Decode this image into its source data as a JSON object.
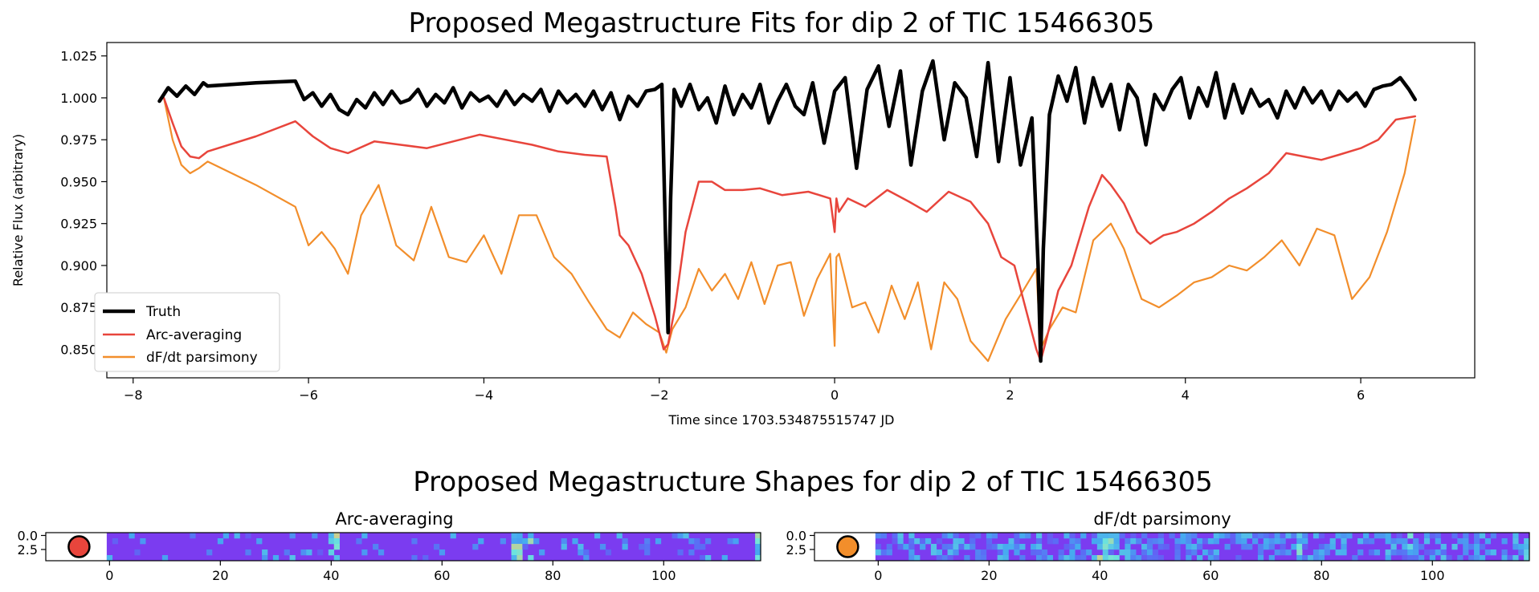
{
  "chart_data": [
    {
      "type": "line",
      "title": "Proposed Megastructure Fits for dip 2 of TIC 15466305",
      "xlabel": "Time since 1703.534875515747 JD",
      "ylabel": "Relative Flux (arbitrary)",
      "xlim": [
        -8.3,
        7.3
      ],
      "ylim": [
        0.833,
        1.033
      ],
      "xticks": [
        -8,
        -6,
        -4,
        -2,
        0,
        2,
        4,
        6
      ],
      "xtick_labels": [
        "−8",
        "−6",
        "−4",
        "−2",
        "0",
        "2",
        "4",
        "6"
      ],
      "yticks": [
        0.85,
        0.875,
        0.9,
        0.925,
        0.95,
        0.975,
        1.0,
        1.025
      ],
      "ytick_labels": [
        "0.850",
        "0.875",
        "0.900",
        "0.925",
        "0.950",
        "0.975",
        "1.000",
        "1.025"
      ],
      "grid": false,
      "legend_position": "lower-left",
      "series": [
        {
          "name": "Truth",
          "color": "#000000",
          "x": [
            -7.7,
            -7.6,
            -7.5,
            -7.4,
            -7.3,
            -7.2,
            -7.15,
            -6.6,
            -6.15,
            -6.05,
            -5.95,
            -5.85,
            -5.75,
            -5.65,
            -5.55,
            -5.45,
            -5.35,
            -5.25,
            -5.15,
            -5.05,
            -4.95,
            -4.85,
            -4.75,
            -4.65,
            -4.55,
            -4.45,
            -4.35,
            -4.25,
            -4.15,
            -4.05,
            -3.95,
            -3.85,
            -3.75,
            -3.65,
            -3.55,
            -3.45,
            -3.35,
            -3.25,
            -3.15,
            -3.05,
            -2.95,
            -2.85,
            -2.75,
            -2.65,
            -2.55,
            -2.45,
            -2.35,
            -2.25,
            -2.15,
            -2.05,
            -1.97,
            -1.93,
            -1.9,
            -1.87,
            -1.83,
            -1.75,
            -1.65,
            -1.55,
            -1.45,
            -1.35,
            -1.25,
            -1.15,
            -1.05,
            -0.95,
            -0.85,
            -0.75,
            -0.65,
            -0.55,
            -0.45,
            -0.35,
            -0.25,
            -0.12,
            0.0,
            0.12,
            0.25,
            0.37,
            0.5,
            0.62,
            0.75,
            0.87,
            1.0,
            1.12,
            1.25,
            1.37,
            1.5,
            1.62,
            1.75,
            1.87,
            2.0,
            2.12,
            2.25,
            2.32,
            2.35,
            2.38,
            2.45,
            2.55,
            2.65,
            2.75,
            2.85,
            2.95,
            3.05,
            3.15,
            3.25,
            3.35,
            3.45,
            3.55,
            3.65,
            3.75,
            3.85,
            3.95,
            4.05,
            4.15,
            4.25,
            4.35,
            4.45,
            4.55,
            4.65,
            4.75,
            4.85,
            4.95,
            5.05,
            5.15,
            5.25,
            5.35,
            5.45,
            5.55,
            5.65,
            5.75,
            5.85,
            5.95,
            6.05,
            6.15,
            6.25,
            6.35,
            6.45,
            6.55,
            6.62
          ],
          "y": [
            0.998,
            1.006,
            1.001,
            1.007,
            1.002,
            1.009,
            1.007,
            1.009,
            1.01,
            0.999,
            1.003,
            0.995,
            1.002,
            0.993,
            0.99,
            0.999,
            0.994,
            1.003,
            0.996,
            1.004,
            0.997,
            0.999,
            1.005,
            0.995,
            1.002,
            0.997,
            1.006,
            0.994,
            1.003,
            0.998,
            1.001,
            0.995,
            1.004,
            0.996,
            1.002,
            0.998,
            1.005,
            0.992,
            1.004,
            0.997,
            1.002,
            0.995,
            1.004,
            0.993,
            1.003,
            0.987,
            1.001,
            0.995,
            1.004,
            1.005,
            1.008,
            0.92,
            0.86,
            0.94,
            1.005,
            0.995,
            1.008,
            0.993,
            1.0,
            0.985,
            1.007,
            0.99,
            1.002,
            0.994,
            1.008,
            0.985,
            0.998,
            1.008,
            0.995,
            0.99,
            1.009,
            0.973,
            1.004,
            1.012,
            0.958,
            1.005,
            1.019,
            0.983,
            1.016,
            0.96,
            1.004,
            1.022,
            0.975,
            1.009,
            1.0,
            0.965,
            1.021,
            0.962,
            1.012,
            0.96,
            0.988,
            0.9,
            0.843,
            0.91,
            0.99,
            1.013,
            0.998,
            1.018,
            0.985,
            1.012,
            0.995,
            1.008,
            0.981,
            1.008,
            1.0,
            0.972,
            1.002,
            0.993,
            1.005,
            1.012,
            0.988,
            1.006,
            0.995,
            1.015,
            0.988,
            1.008,
            0.991,
            1.005,
            0.995,
            0.999,
            0.988,
            1.004,
            0.994,
            1.006,
            0.997,
            1.004,
            0.993,
            1.004,
            0.998,
            1.003,
            0.995,
            1.005,
            1.007,
            1.008,
            1.012,
            1.005,
            0.999
          ]
        },
        {
          "name": "Arc-averaging",
          "color": "#e8453c",
          "x": [
            -7.65,
            -7.55,
            -7.45,
            -7.35,
            -7.25,
            -7.15,
            -6.6,
            -6.15,
            -5.95,
            -5.75,
            -5.55,
            -5.25,
            -4.95,
            -4.65,
            -4.35,
            -4.05,
            -3.75,
            -3.45,
            -3.15,
            -2.85,
            -2.6,
            -2.5,
            -2.45,
            -2.35,
            -2.2,
            -2.05,
            -1.95,
            -1.9,
            -1.82,
            -1.7,
            -1.55,
            -1.4,
            -1.25,
            -1.05,
            -0.85,
            -0.6,
            -0.3,
            -0.05,
            0.0,
            0.02,
            0.05,
            0.15,
            0.35,
            0.6,
            0.85,
            1.05,
            1.3,
            1.55,
            1.75,
            1.9,
            2.05,
            2.2,
            2.3,
            2.35,
            2.42,
            2.55,
            2.7,
            2.9,
            3.05,
            3.15,
            3.3,
            3.45,
            3.6,
            3.75,
            3.9,
            4.1,
            4.3,
            4.5,
            4.7,
            4.95,
            5.15,
            5.35,
            5.55,
            5.75,
            6.0,
            6.2,
            6.4,
            6.62
          ],
          "y": [
            1.0,
            0.985,
            0.971,
            0.965,
            0.964,
            0.968,
            0.977,
            0.986,
            0.977,
            0.97,
            0.967,
            0.974,
            0.972,
            0.97,
            0.974,
            0.978,
            0.975,
            0.972,
            0.968,
            0.966,
            0.965,
            0.935,
            0.918,
            0.912,
            0.895,
            0.87,
            0.85,
            0.853,
            0.875,
            0.92,
            0.95,
            0.95,
            0.945,
            0.945,
            0.946,
            0.942,
            0.944,
            0.94,
            0.92,
            0.94,
            0.932,
            0.94,
            0.935,
            0.945,
            0.938,
            0.932,
            0.944,
            0.938,
            0.925,
            0.905,
            0.9,
            0.87,
            0.85,
            0.843,
            0.857,
            0.885,
            0.9,
            0.935,
            0.954,
            0.948,
            0.937,
            0.92,
            0.913,
            0.918,
            0.92,
            0.925,
            0.932,
            0.94,
            0.946,
            0.955,
            0.967,
            0.965,
            0.963,
            0.966,
            0.97,
            0.975,
            0.987,
            0.989
          ]
        },
        {
          "name": "dF/dt parsimony",
          "color": "#f28e2b",
          "x": [
            -7.65,
            -7.55,
            -7.45,
            -7.35,
            -7.25,
            -7.15,
            -6.6,
            -6.15,
            -6.0,
            -5.85,
            -5.7,
            -5.55,
            -5.4,
            -5.2,
            -5.0,
            -4.8,
            -4.6,
            -4.4,
            -4.2,
            -4.0,
            -3.8,
            -3.6,
            -3.4,
            -3.2,
            -3.0,
            -2.8,
            -2.6,
            -2.45,
            -2.3,
            -2.15,
            -2.0,
            -1.92,
            -1.85,
            -1.7,
            -1.55,
            -1.4,
            -1.25,
            -1.1,
            -0.95,
            -0.8,
            -0.65,
            -0.5,
            -0.35,
            -0.2,
            -0.05,
            0.0,
            0.02,
            0.05,
            0.2,
            0.35,
            0.5,
            0.65,
            0.8,
            0.95,
            1.1,
            1.25,
            1.4,
            1.55,
            1.75,
            1.95,
            2.15,
            2.3,
            2.35,
            2.45,
            2.6,
            2.75,
            2.95,
            3.15,
            3.3,
            3.5,
            3.7,
            3.9,
            4.1,
            4.3,
            4.5,
            4.7,
            4.9,
            5.1,
            5.3,
            5.5,
            5.7,
            5.9,
            6.1,
            6.3,
            6.5,
            6.62
          ],
          "y": [
            1.0,
            0.975,
            0.96,
            0.955,
            0.958,
            0.962,
            0.948,
            0.935,
            0.912,
            0.92,
            0.91,
            0.895,
            0.93,
            0.948,
            0.912,
            0.903,
            0.935,
            0.905,
            0.902,
            0.918,
            0.895,
            0.93,
            0.93,
            0.905,
            0.895,
            0.878,
            0.862,
            0.857,
            0.872,
            0.865,
            0.86,
            0.848,
            0.862,
            0.875,
            0.898,
            0.885,
            0.895,
            0.88,
            0.902,
            0.877,
            0.9,
            0.902,
            0.87,
            0.892,
            0.907,
            0.852,
            0.905,
            0.907,
            0.875,
            0.878,
            0.86,
            0.888,
            0.868,
            0.89,
            0.85,
            0.89,
            0.88,
            0.855,
            0.843,
            0.868,
            0.885,
            0.898,
            0.85,
            0.862,
            0.875,
            0.872,
            0.915,
            0.925,
            0.91,
            0.88,
            0.875,
            0.882,
            0.89,
            0.893,
            0.9,
            0.897,
            0.905,
            0.915,
            0.9,
            0.922,
            0.918,
            0.88,
            0.893,
            0.92,
            0.955,
            0.987
          ]
        }
      ]
    },
    {
      "type": "heatmap",
      "suptitle": "Proposed Megastructure Shapes for dip 2 of TIC 15466305",
      "title": "Arc-averaging",
      "xlim": [
        -11.5,
        117.5
      ],
      "xticks": [
        0,
        20,
        40,
        60,
        80,
        100
      ],
      "xtick_labels": [
        "0",
        "20",
        "40",
        "60",
        "80",
        "100"
      ],
      "ylim": [
        4.5,
        -0.5
      ],
      "yticks": [
        0.0,
        2.5
      ],
      "ytick_labels": [
        "0.0",
        "2.5"
      ],
      "rows": 5,
      "columns": 118,
      "base_color": "#7b3cf0",
      "star": {
        "x": -5.5,
        "y": 2.0,
        "color": "#e8453c"
      },
      "texture": {
        "seed": 7,
        "density": 0.12,
        "hotspots": [
          40,
          41,
          73,
          74,
          75,
          76,
          117
        ]
      }
    },
    {
      "type": "heatmap",
      "title": "dF/dt parsimony",
      "xlim": [
        -11.5,
        117.5
      ],
      "xticks": [
        0,
        20,
        40,
        60,
        80,
        100
      ],
      "xtick_labels": [
        "0",
        "20",
        "40",
        "60",
        "80",
        "100"
      ],
      "ylim": [
        4.5,
        -0.5
      ],
      "yticks": [
        0.0,
        2.5
      ],
      "ytick_labels": [
        "0.0",
        "2.5"
      ],
      "rows": 5,
      "columns": 118,
      "base_color": "#7b3cf0",
      "star": {
        "x": -5.5,
        "y": 2.0,
        "color": "#f28e2b"
      },
      "texture": {
        "seed": 13,
        "density": 0.55,
        "hotspots": [
          40,
          41,
          42,
          43,
          76,
          96,
          117
        ]
      }
    }
  ]
}
